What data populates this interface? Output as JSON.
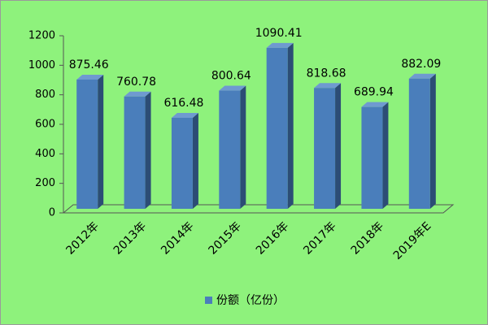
{
  "chart_data": {
    "type": "bar",
    "categories": [
      "2012年",
      "2013年",
      "2014年",
      "2015年",
      "2016年",
      "2017年",
      "2018年",
      "2019年E"
    ],
    "series": [
      {
        "name": "份额（亿份）",
        "color": "#4a7ebb",
        "values": [
          875.46,
          760.78,
          616.48,
          800.64,
          1090.41,
          818.68,
          689.94,
          882.09
        ]
      }
    ],
    "ylim": [
      0,
      1200
    ],
    "yticks": [
      0,
      200,
      400,
      600,
      800,
      1000,
      1200
    ],
    "legend": "bottom"
  }
}
